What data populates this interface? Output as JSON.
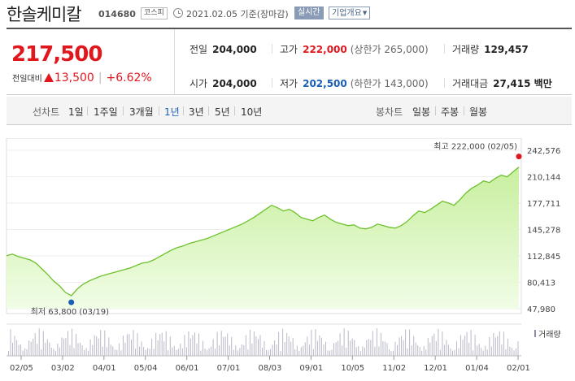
{
  "header": {
    "stock_name": "한솔케미칼",
    "stock_code": "014680",
    "market": "코스피",
    "date_text": "2021.02.05 기준(장마감)",
    "realtime_label": "실시간",
    "company_label": "기업개요"
  },
  "price": {
    "current": "217,500",
    "change_label": "전일대비",
    "change": "13,500",
    "change_pct": "+6.62%"
  },
  "stats": {
    "prev_label": "전일",
    "prev": "204,000",
    "high_label": "고가",
    "high": "222,000",
    "upper_limit": "(상한가 265,000)",
    "volume_label": "거래량",
    "volume": "129,457",
    "open_label": "시가",
    "open": "204,000",
    "low_label": "저가",
    "low": "202,500",
    "lower_limit": "(하한가 143,000)",
    "amount_label": "거래대금",
    "amount": "27,415 백만"
  },
  "tabs": {
    "line_head": "선차트",
    "line": [
      "1일",
      "1주일",
      "3개월",
      "1년",
      "3년",
      "5년",
      "10년"
    ],
    "active": "1년",
    "candle_head": "봉차트",
    "candle": [
      "일봉",
      "주봉",
      "월봉"
    ]
  },
  "colors": {
    "up_red": "#e0181e",
    "down_blue": "#1a5fb4",
    "line_green": "#6cc12c",
    "area_top": "#c8ef9e",
    "area_bottom": "#f1fde6",
    "volume_bar": "#b9b9c9"
  },
  "chart_data": {
    "type": "area",
    "ylim": [
      47980,
      242576
    ],
    "y_ticks": [
      "242,576",
      "210,144",
      "177,711",
      "145,278",
      "112,845",
      "80,413",
      "47,980"
    ],
    "x_ticks": [
      "02/05",
      "03/02",
      "04/01",
      "05/04",
      "06/01",
      "07/01",
      "08/03",
      "09/01",
      "10/05",
      "11/02",
      "12/01",
      "01/04",
      "02/01"
    ],
    "max_label": "최고 222,000 (02/05)",
    "min_label": "최저 63,800 (03/19)",
    "volume_label": "거래량",
    "series": [
      {
        "values": [
          113000,
          115000,
          112000,
          110000,
          108000,
          104000,
          97000,
          90000,
          82000,
          76000,
          68000,
          63800,
          72000,
          78000,
          82000,
          85000,
          88000,
          90000,
          92000,
          94000,
          96000,
          98000,
          101000,
          104000,
          105000,
          108000,
          112000,
          116000,
          120000,
          123000,
          125000,
          128000,
          130000,
          132000,
          134000,
          137000,
          140000,
          143000,
          146000,
          149000,
          152000,
          156000,
          160000,
          165000,
          170000,
          175000,
          172000,
          168000,
          170000,
          166000,
          160000,
          158000,
          156000,
          160000,
          163000,
          158000,
          154000,
          152000,
          150000,
          151000,
          147000,
          146000,
          148000,
          152000,
          150000,
          148000,
          147000,
          150000,
          155000,
          162000,
          168000,
          166000,
          170000,
          175000,
          180000,
          178000,
          175000,
          182000,
          190000,
          196000,
          200000,
          205000,
          203000,
          208000,
          212000,
          210000,
          216000,
          222000
        ]
      }
    ]
  }
}
